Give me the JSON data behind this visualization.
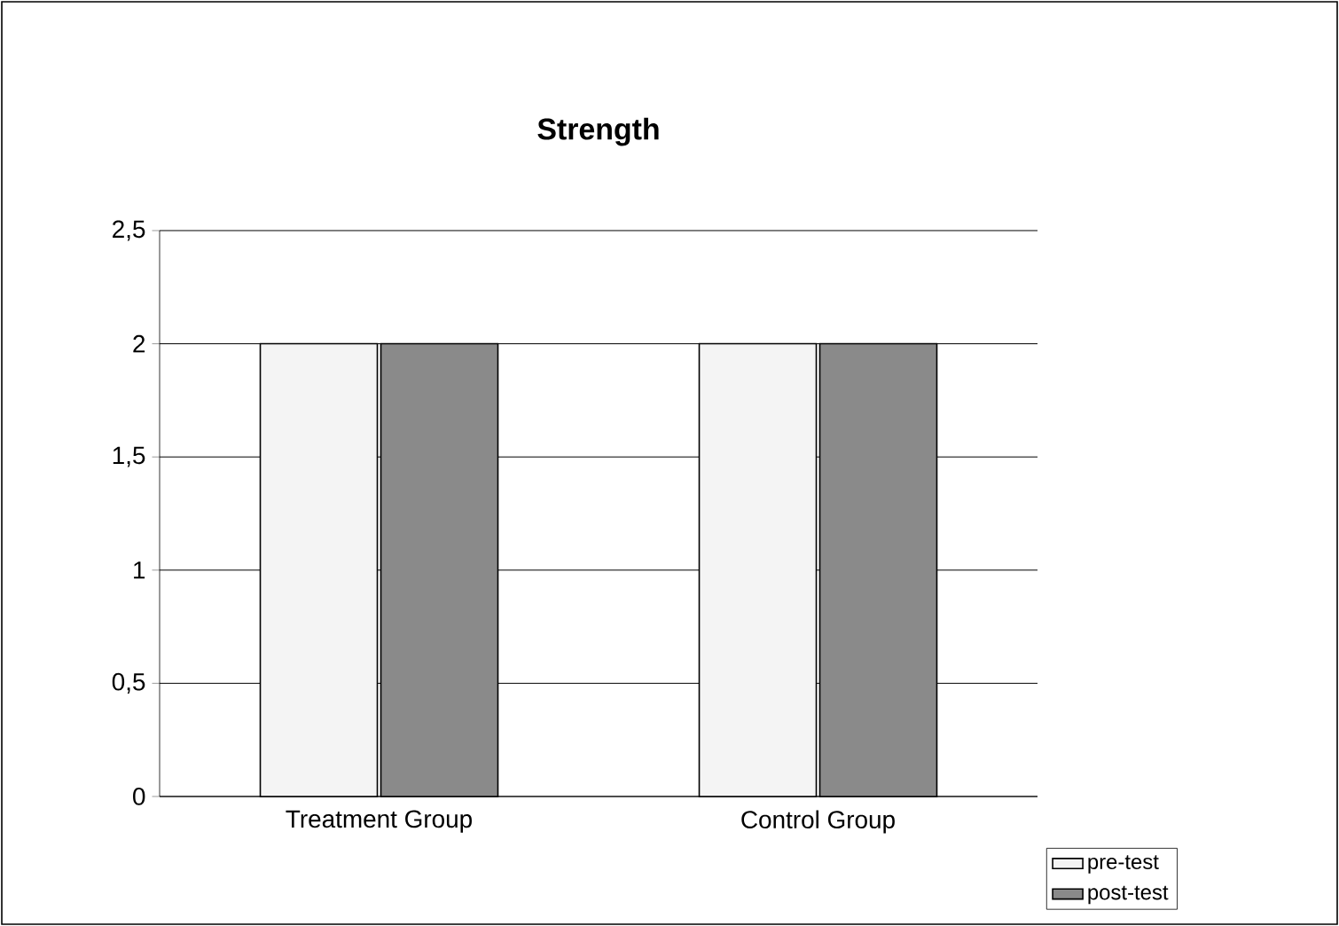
{
  "chart_data": {
    "type": "bar",
    "title": "Strength",
    "categories": [
      "Treatment Group",
      "Control Group"
    ],
    "series": [
      {
        "name": "pre-test",
        "color": "#f4f4f4",
        "values": [
          2,
          2
        ]
      },
      {
        "name": "post-test",
        "color": "#8a8a8a",
        "values": [
          2,
          2
        ]
      }
    ],
    "ylim": [
      0,
      2.5
    ],
    "yticks": [
      0,
      {
        "value": 0.5,
        "label": "0,5"
      },
      1,
      {
        "value": 1.5,
        "label": "1,5"
      },
      2,
      {
        "value": 2.5,
        "label": "2,5"
      }
    ],
    "grid": "y",
    "legend": "bottom right"
  }
}
